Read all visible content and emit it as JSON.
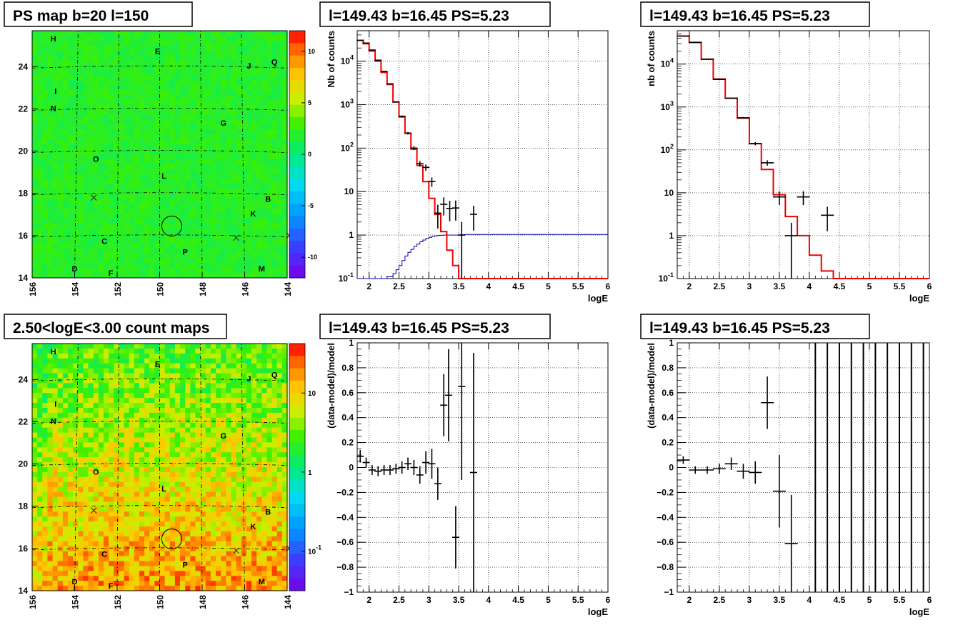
{
  "chart_data": [
    {
      "id": "psmap",
      "type": "heatmap",
      "title": "PS map b=20 l=150",
      "x_ticks": [
        "156",
        "154",
        "152",
        "150",
        "148",
        "146",
        "144"
      ],
      "y_ticks": [
        "14",
        "16",
        "18",
        "20",
        "22",
        "24"
      ],
      "xlim": [
        156,
        144
      ],
      "ylim": [
        14,
        25.7
      ],
      "colorbar": {
        "ticks": [
          "10",
          "5",
          "0",
          "-5",
          "-10"
        ],
        "range": [
          -12,
          12
        ]
      },
      "source_labels": [
        {
          "text": "H",
          "l": 155.0,
          "b": 25.2
        },
        {
          "text": "E",
          "l": 150.1,
          "b": 24.6
        },
        {
          "text": "J",
          "l": 145.8,
          "b": 23.9
        },
        {
          "text": "Q",
          "l": 144.6,
          "b": 24.1
        },
        {
          "text": "I",
          "l": 154.9,
          "b": 22.7
        },
        {
          "text": "N",
          "l": 155.0,
          "b": 21.9
        },
        {
          "text": "G",
          "l": 147.0,
          "b": 21.2
        },
        {
          "text": "O",
          "l": 153.0,
          "b": 19.5
        },
        {
          "text": "L",
          "l": 149.8,
          "b": 18.7
        },
        {
          "text": "B",
          "l": 144.9,
          "b": 17.6
        },
        {
          "text": "K",
          "l": 145.6,
          "b": 16.9
        },
        {
          "text": "C",
          "l": 152.6,
          "b": 15.6
        },
        {
          "text": "P",
          "l": 148.8,
          "b": 15.1
        },
        {
          "text": "M",
          "l": 145.2,
          "b": 14.3
        },
        {
          "text": "D",
          "l": 154.0,
          "b": 14.3
        },
        {
          "text": "F",
          "l": 152.3,
          "b": 14.1
        }
      ],
      "crosses": [
        {
          "l": 153.1,
          "b": 17.8
        },
        {
          "l": 146.4,
          "b": 15.9
        },
        {
          "l": 143.9,
          "b": 16.0
        }
      ],
      "circle": {
        "l": 149.43,
        "b": 16.45
      }
    },
    {
      "id": "spectrum1",
      "type": "line",
      "title": "l=149.43 b=16.45 PS=5.23",
      "xlabel": "logE",
      "ylabel": "Nb of counts",
      "log_y": true,
      "xlim": [
        1.8,
        6.0
      ],
      "ylim": [
        0.1,
        50000
      ],
      "x_ticks": [
        "2",
        "2.5",
        "3",
        "3.5",
        "4",
        "4.5",
        "5",
        "5.5",
        "6"
      ],
      "y_ticks": [
        "10^{-1}",
        "1",
        "10",
        "10^{2}",
        "10^{3}",
        "10^{4}"
      ],
      "bin_edges": [
        1.8,
        1.9,
        2.0,
        2.1,
        2.2,
        2.3,
        2.4,
        2.5,
        2.6,
        2.7,
        2.8,
        2.9,
        3.0,
        3.1,
        3.2,
        3.3,
        3.4,
        3.5,
        3.6,
        3.7,
        3.8,
        3.9,
        4.0,
        4.1,
        4.2,
        4.3,
        4.4,
        4.5,
        5.0,
        5.5,
        6.0
      ],
      "series": [
        {
          "values": [
            30000,
            25000,
            17000,
            10000,
            5500,
            2900,
            1150,
            520,
            220,
            95,
            40,
            17,
            7,
            3,
            1.2,
            0.45,
            0.2,
            0.1,
            0.1,
            0.1,
            0.1,
            0.1,
            0.1,
            0.1,
            0.1,
            0.1,
            0.1,
            0.1,
            0.1,
            0.1
          ]
        }
      ],
      "background_curve": {
        "x": [
          1.8,
          2.2,
          2.3,
          2.4,
          2.45,
          2.5,
          2.55,
          2.6,
          2.65,
          2.7,
          2.75,
          2.8,
          2.85,
          2.9,
          2.95,
          3.0,
          3.05,
          3.1,
          3.15,
          3.2,
          3.25,
          3.3,
          3.35,
          3.4,
          3.5,
          3.6,
          3.7,
          4.0,
          5.0,
          6.0
        ],
        "y": [
          0.1,
          0.1,
          0.11,
          0.13,
          0.16,
          0.2,
          0.26,
          0.33,
          0.4,
          0.47,
          0.55,
          0.62,
          0.7,
          0.77,
          0.84,
          0.89,
          0.93,
          0.96,
          0.98,
          0.99,
          1.0,
          1.0,
          1.0,
          1.0,
          1.02,
          1.03,
          1.03,
          1.03,
          1.03,
          1.03
        ]
      },
      "points": [
        {
          "x": 1.85,
          "y": 30000
        },
        {
          "x": 1.95,
          "y": 26000
        },
        {
          "x": 2.05,
          "y": 18000
        },
        {
          "x": 2.15,
          "y": 10500
        },
        {
          "x": 2.25,
          "y": 5800
        },
        {
          "x": 2.35,
          "y": 3000
        },
        {
          "x": 2.45,
          "y": 1150
        },
        {
          "x": 2.55,
          "y": 540
        },
        {
          "x": 2.65,
          "y": 220
        },
        {
          "x": 2.75,
          "y": 100
        },
        {
          "x": 2.85,
          "y": 44
        },
        {
          "x": 2.95,
          "y": 36
        },
        {
          "x": 3.05,
          "y": 17
        },
        {
          "x": 3.15,
          "y": 3.2
        },
        {
          "x": 3.25,
          "y": 5.1
        },
        {
          "x": 3.35,
          "y": 4.1
        },
        {
          "x": 3.45,
          "y": 4.2
        },
        {
          "x": 3.55,
          "y": 1.0
        },
        {
          "x": 3.75,
          "y": 3.0
        }
      ]
    },
    {
      "id": "spectrum2",
      "type": "line",
      "title": "l=149.43 b=16.45 PS=5.23",
      "xlabel": "logE",
      "ylabel": "nb of counts",
      "log_y": true,
      "xlim": [
        1.8,
        6.0
      ],
      "ylim": [
        0.1,
        60000
      ],
      "x_ticks": [
        "2",
        "2.5",
        "3",
        "3.5",
        "4",
        "4.5",
        "5",
        "5.5",
        "6"
      ],
      "y_ticks": [
        "10^{-1}",
        "1",
        "10",
        "10^{2}",
        "10^{3}",
        "10^{4}"
      ],
      "bin_edges": [
        1.8,
        2.0,
        2.2,
        2.4,
        2.6,
        2.8,
        3.0,
        3.2,
        3.4,
        3.6,
        3.8,
        4.0,
        4.2,
        4.4,
        4.6,
        6.0
      ],
      "series": [
        {
          "values": [
            45000,
            32000,
            13000,
            4500,
            1600,
            550,
            140,
            35,
            9,
            2.8,
            1.0,
            0.35,
            0.15,
            0.1,
            0.1
          ]
        }
      ],
      "points": [
        {
          "x": 1.9,
          "y": 45000
        },
        {
          "x": 2.1,
          "y": 32000
        },
        {
          "x": 2.3,
          "y": 13000
        },
        {
          "x": 2.5,
          "y": 4400
        },
        {
          "x": 2.7,
          "y": 1600
        },
        {
          "x": 2.9,
          "y": 560
        },
        {
          "x": 3.1,
          "y": 140
        },
        {
          "x": 3.3,
          "y": 50
        },
        {
          "x": 3.5,
          "y": 8
        },
        {
          "x": 3.7,
          "y": 1.0
        },
        {
          "x": 3.9,
          "y": 8
        },
        {
          "x": 4.3,
          "y": 3.0
        }
      ]
    },
    {
      "id": "countmap",
      "type": "heatmap",
      "title": "2.50<logE<3.00 count maps",
      "x_ticks": [
        "156",
        "154",
        "152",
        "150",
        "148",
        "146",
        "144"
      ],
      "y_ticks": [
        "14",
        "16",
        "18",
        "20",
        "22",
        "24"
      ],
      "xlim": [
        156,
        144
      ],
      "ylim": [
        14,
        25.7
      ],
      "colorbar": {
        "ticks": [
          "10",
          "1",
          "10^{-1}"
        ],
        "log": true
      },
      "source_labels": [
        {
          "text": "H",
          "l": 155.0,
          "b": 25.2
        },
        {
          "text": "E",
          "l": 150.1,
          "b": 24.6
        },
        {
          "text": "J",
          "l": 145.8,
          "b": 23.9
        },
        {
          "text": "Q",
          "l": 144.6,
          "b": 24.1
        },
        {
          "text": "I",
          "l": 154.9,
          "b": 22.7
        },
        {
          "text": "N",
          "l": 155.0,
          "b": 21.9
        },
        {
          "text": "G",
          "l": 147.0,
          "b": 21.2
        },
        {
          "text": "O",
          "l": 153.0,
          "b": 19.5
        },
        {
          "text": "L",
          "l": 149.8,
          "b": 18.7
        },
        {
          "text": "B",
          "l": 144.9,
          "b": 17.6
        },
        {
          "text": "K",
          "l": 145.6,
          "b": 16.9
        },
        {
          "text": "C",
          "l": 152.6,
          "b": 15.6
        },
        {
          "text": "P",
          "l": 148.8,
          "b": 15.1
        },
        {
          "text": "M",
          "l": 145.2,
          "b": 14.3
        },
        {
          "text": "D",
          "l": 154.0,
          "b": 14.3
        },
        {
          "text": "F",
          "l": 152.3,
          "b": 14.1
        }
      ],
      "crosses": [
        {
          "l": 153.1,
          "b": 17.8
        },
        {
          "l": 146.4,
          "b": 15.9
        },
        {
          "l": 143.9,
          "b": 16.0
        }
      ],
      "circle": {
        "l": 149.43,
        "b": 16.45
      }
    },
    {
      "id": "resid1",
      "type": "scatter",
      "title": "l=149.43 b=16.45 PS=5.23",
      "xlabel": "logE",
      "ylabel": "(data-model)/model",
      "xlim": [
        1.8,
        6.0
      ],
      "ylim": [
        -1,
        1
      ],
      "x_ticks": [
        "2",
        "2.5",
        "3",
        "3.5",
        "4",
        "4.5",
        "5",
        "5.5",
        "6"
      ],
      "y_ticks": [
        "−1",
        "−0.8",
        "−0.6",
        "−0.4",
        "−0.2",
        "0",
        "0.2",
        "0.4",
        "0.6",
        "0.8",
        "1"
      ],
      "points": [
        {
          "x": 1.85,
          "y": 0.09,
          "err": 0.05
        },
        {
          "x": 1.95,
          "y": 0.04,
          "err": 0.04
        },
        {
          "x": 2.05,
          "y": -0.02,
          "err": 0.04
        },
        {
          "x": 2.15,
          "y": -0.03,
          "err": 0.04
        },
        {
          "x": 2.25,
          "y": -0.02,
          "err": 0.04
        },
        {
          "x": 2.35,
          "y": -0.02,
          "err": 0.04
        },
        {
          "x": 2.45,
          "y": -0.01,
          "err": 0.04
        },
        {
          "x": 2.55,
          "y": 0.0,
          "err": 0.05
        },
        {
          "x": 2.65,
          "y": 0.03,
          "err": 0.05
        },
        {
          "x": 2.75,
          "y": 0.0,
          "err": 0.06
        },
        {
          "x": 2.85,
          "y": -0.06,
          "err": 0.07
        },
        {
          "x": 2.95,
          "y": 0.04,
          "err": 0.09
        },
        {
          "x": 3.05,
          "y": 0.03,
          "err": 0.12
        },
        {
          "x": 3.15,
          "y": -0.13,
          "err": 0.13
        },
        {
          "x": 3.25,
          "y": 0.5,
          "err": 0.25
        },
        {
          "x": 3.33,
          "y": 0.58,
          "err": 0.37
        },
        {
          "x": 3.45,
          "y": -0.56,
          "err": 0.25
        },
        {
          "x": 3.55,
          "y": 0.65,
          "err": 0.75
        },
        {
          "x": 3.75,
          "y": -0.04,
          "err": 0.96
        }
      ]
    },
    {
      "id": "resid2",
      "type": "scatter",
      "title": "l=149.43 b=16.45 PS=5.23",
      "xlabel": "logE",
      "ylabel": "(data-model)/model",
      "xlim": [
        1.8,
        6.0
      ],
      "ylim": [
        -1,
        1
      ],
      "x_ticks": [
        "2",
        "2.5",
        "3",
        "3.5",
        "4",
        "4.5",
        "5",
        "5.5",
        "6"
      ],
      "y_ticks": [
        "−1",
        "−0.8",
        "−0.6",
        "−0.4",
        "−0.2",
        "0",
        "0.2",
        "0.4",
        "0.6",
        "0.8",
        "1"
      ],
      "points": [
        {
          "x": 1.9,
          "y": 0.06,
          "err": 0.03
        },
        {
          "x": 2.1,
          "y": -0.02,
          "err": 0.03
        },
        {
          "x": 2.3,
          "y": -0.02,
          "err": 0.03
        },
        {
          "x": 2.5,
          "y": -0.01,
          "err": 0.04
        },
        {
          "x": 2.7,
          "y": 0.03,
          "err": 0.05
        },
        {
          "x": 2.9,
          "y": -0.03,
          "err": 0.06
        },
        {
          "x": 3.1,
          "y": -0.04,
          "err": 0.09
        },
        {
          "x": 3.3,
          "y": 0.52,
          "err": 0.21
        },
        {
          "x": 3.5,
          "y": -0.19,
          "err": 0.29
        },
        {
          "x": 3.7,
          "y": -0.61,
          "err": 0.39
        }
      ],
      "full_bars_x": [
        4.1,
        4.3,
        4.5,
        4.7,
        4.9,
        5.1,
        5.3,
        5.5,
        5.7,
        5.9
      ]
    }
  ]
}
